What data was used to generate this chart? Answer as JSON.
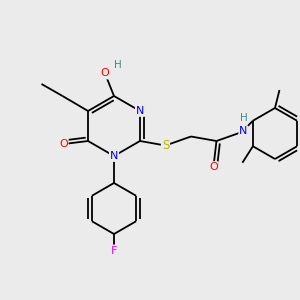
{
  "bg_color": "#ebebeb",
  "atom_colors": {
    "C": "#000000",
    "N": "#0000ff",
    "O": "#ff0000",
    "S": "#b8b800",
    "F": "#ff00ff",
    "H": "#3d8b8b"
  },
  "bond_color": "#000000",
  "bond_lw": 1.3
}
